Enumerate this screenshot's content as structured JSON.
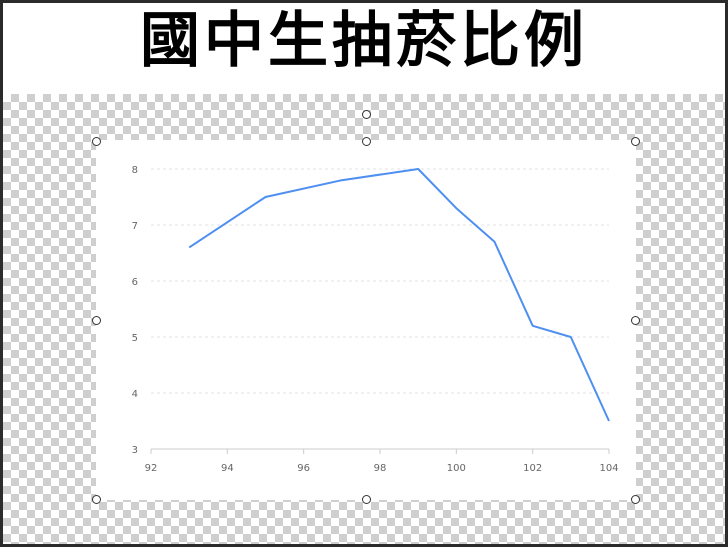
{
  "title": "國中生抽菸比例",
  "chart_data": {
    "type": "line",
    "title": "國中生抽菸比例",
    "xlabel": "",
    "ylabel": "",
    "xlim": [
      92,
      104
    ],
    "ylim": [
      3,
      8
    ],
    "xticks": [
      92,
      94,
      96,
      98,
      100,
      102,
      104
    ],
    "yticks": [
      3,
      4,
      5,
      6,
      7,
      8
    ],
    "grid": "horizontal dashed",
    "legend": "none",
    "line_color": "#4e8ff2",
    "series": [
      {
        "x": [
          93,
          95,
          97,
          99,
          100,
          101,
          102,
          103,
          104
        ],
        "y": [
          6.6,
          7.5,
          7.8,
          8.0,
          7.3,
          6.7,
          5.2,
          5.0,
          3.5
        ]
      }
    ]
  }
}
